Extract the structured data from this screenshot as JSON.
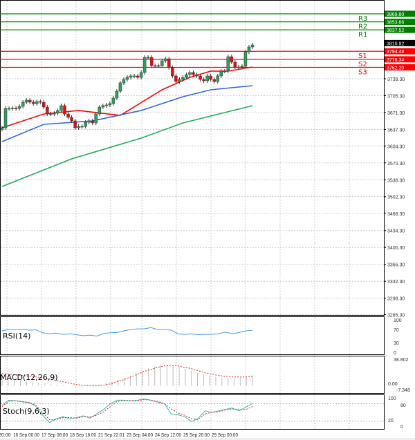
{
  "chart_data": [
    {
      "type": "candlestick",
      "symbol_price": "3810.92",
      "y_ticks": [
        "3739.30",
        "3705.30",
        "3671.30",
        "3637.30",
        "3604.30",
        "3570.30",
        "3536.30",
        "3502.30",
        "3468.30",
        "3434.30",
        "3400.30",
        "3366.30",
        "3332.30",
        "3298.30",
        "3265.30"
      ],
      "x_ticks": [
        "20:00",
        "16 Sep 00:00",
        "17 Sep 08:00",
        "18 Sep 16:00",
        "21 Sep 22:01",
        "23 Sep 04:00",
        "24 Sep 12:00",
        "25 Sep 20:00",
        "29 Sep 00:00"
      ],
      "levels": [
        {
          "name": "R3",
          "value": "3869.80",
          "color": "#008000"
        },
        {
          "name": "R2",
          "value": "3853.66",
          "color": "#008000"
        },
        {
          "name": "R1",
          "value": "3837.52",
          "color": "#008000"
        },
        {
          "name": "S1",
          "value": "3794.48",
          "color": "#ff0000"
        },
        {
          "name": "S2",
          "value": "3778.34",
          "color": "#ff0000"
        },
        {
          "name": "S3",
          "value": "3762.20",
          "color": "#ff0000"
        }
      ],
      "closes": [
        3640.8,
        3679.6,
        3679.6,
        3680.5,
        3679.6,
        3683.8,
        3692.1,
        3696.3,
        3692.1,
        3689.3,
        3693.5,
        3692.1,
        3682.4,
        3668.5,
        3668.5,
        3670.0,
        3675.5,
        3685.2,
        3668.5,
        3661.6,
        3654.6,
        3640.8,
        3643.5,
        3643.5,
        3651.8,
        3654.6,
        3650.5,
        3668.5,
        3682.4,
        3685.2,
        3686.6,
        3689.3,
        3700.4,
        3714.3,
        3731.0,
        3737.9,
        3742.1,
        3744.9,
        3744.9,
        3742.1,
        3751.8,
        3782.3,
        3782.3,
        3765.7,
        3765.7,
        3765.7,
        3775.4,
        3779.5,
        3761.5,
        3744.9,
        3733.7,
        3737.9,
        3742.1,
        3747.6,
        3751.8,
        3747.6,
        3744.9,
        3737.9,
        3735.1,
        3744.9,
        3737.9,
        3733.7,
        3744.9,
        3754.6,
        3754.6,
        3783.7,
        3772.6,
        3762.9,
        3762.9,
        3764.3,
        3793.4,
        3803.1,
        3807.3
      ],
      "moving_averages": [
        {
          "color": "#ff0000",
          "points": [
            [
              0,
              3640.8
            ],
            [
              12,
              3668.5
            ],
            [
              22,
              3675.5
            ],
            [
              34,
              3665.7
            ],
            [
              46,
              3717.1
            ],
            [
              54,
              3742.1
            ],
            [
              60,
              3754.6
            ],
            [
              65,
              3754.6
            ],
            [
              72,
              3762.9
            ]
          ]
        },
        {
          "color": "#3366dd",
          "points": [
            [
              0,
              3613.0
            ],
            [
              12,
              3647.7
            ],
            [
              26,
              3654.6
            ],
            [
              40,
              3675.5
            ],
            [
              52,
              3703.2
            ],
            [
              60,
              3717.1
            ],
            [
              72,
              3725.4
            ]
          ]
        },
        {
          "color": "#22aa55",
          "points": [
            [
              0,
              3522.8
            ],
            [
              20,
              3578.3
            ],
            [
              40,
              3619.9
            ],
            [
              52,
              3650.5
            ],
            [
              72,
              3685.2
            ]
          ]
        }
      ]
    },
    {
      "type": "line",
      "label": "RSI(14)",
      "y_ticks": [
        "100",
        "70",
        "30",
        "0"
      ],
      "ylim": [
        0,
        100
      ],
      "values": [
        66,
        70,
        69,
        71,
        68,
        69,
        60,
        57,
        59,
        55,
        57,
        54,
        51,
        53,
        50,
        58,
        60,
        61,
        66,
        70,
        72,
        72,
        76,
        70,
        70,
        68,
        57,
        55,
        57,
        54,
        55,
        55,
        57,
        62,
        57,
        61,
        66,
        67
      ]
    },
    {
      "type": "bar+line",
      "label": "MACD(12,26,9)",
      "y_ticks": [
        "38.802",
        "0.00",
        "-7.348"
      ],
      "ylim": [
        -7.348,
        38.802
      ],
      "histogram": [
        10,
        9,
        8,
        8,
        7,
        6,
        5,
        4,
        3,
        2,
        1,
        0,
        -1,
        -1,
        0,
        1,
        2,
        4,
        6,
        9,
        12,
        15,
        18,
        22,
        26,
        29,
        31,
        31,
        30,
        28,
        25,
        22,
        19,
        17,
        15,
        13,
        12,
        11,
        11,
        12,
        13,
        15
      ],
      "signal": [
        18,
        17,
        16,
        15,
        14,
        13,
        12,
        10,
        8,
        6,
        4,
        2,
        1,
        0,
        0,
        1,
        3,
        6,
        9,
        13,
        17,
        21,
        24,
        27,
        29,
        30,
        29,
        27,
        25,
        22,
        19,
        17,
        15,
        14,
        13,
        13,
        13,
        14
      ]
    },
    {
      "type": "line",
      "label": "Stoch(9,6,3)",
      "y_ticks": [
        "100",
        "80",
        "20",
        "0"
      ],
      "ylim": [
        0,
        100
      ],
      "k": [
        75,
        92,
        90,
        86,
        84,
        70,
        40,
        15,
        28,
        35,
        28,
        32,
        38,
        30,
        45,
        60,
        80,
        92,
        92,
        90,
        92,
        96,
        92,
        85,
        80,
        45,
        42,
        35,
        18,
        30,
        55,
        50,
        55,
        60,
        65,
        55,
        68,
        80
      ],
      "d": [
        70,
        88,
        90,
        88,
        84,
        75,
        50,
        25,
        25,
        32,
        32,
        30,
        35,
        34,
        40,
        52,
        70,
        88,
        90,
        90,
        90,
        94,
        92,
        88,
        80,
        62,
        48,
        40,
        28,
        25,
        45,
        50,
        52,
        58,
        62,
        60,
        60,
        70
      ]
    }
  ]
}
